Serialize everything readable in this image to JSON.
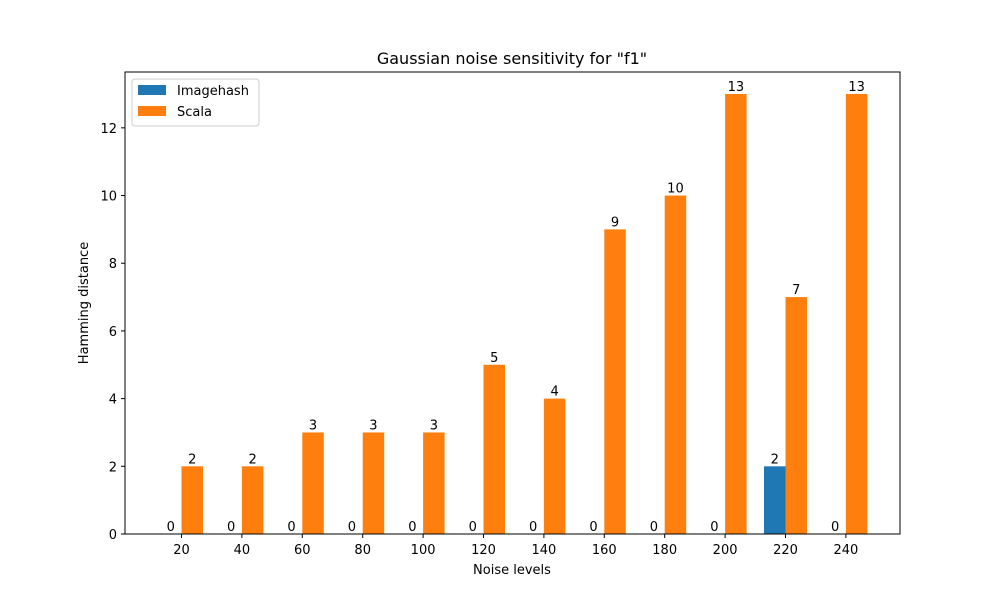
{
  "chart_data": {
    "type": "bar",
    "title": "Gaussian noise sensitivity for \"f1\"",
    "xlabel": "Noise levels",
    "ylabel": "Hamming distance",
    "categories": [
      "20",
      "40",
      "60",
      "80",
      "100",
      "120",
      "140",
      "160",
      "180",
      "200",
      "220",
      "240"
    ],
    "series": [
      {
        "name": "Imagehash",
        "color": "#1f77b4",
        "values": [
          0,
          0,
          0,
          0,
          0,
          0,
          0,
          0,
          0,
          0,
          2,
          0
        ]
      },
      {
        "name": "Scala",
        "color": "#ff7f0e",
        "values": [
          2,
          2,
          3,
          3,
          3,
          5,
          4,
          9,
          10,
          13,
          7,
          13
        ]
      }
    ],
    "ylim": [
      0,
      13.65
    ],
    "yticks": [
      0,
      2,
      4,
      6,
      8,
      10,
      12
    ],
    "grid": false,
    "legend_position": "top-left"
  }
}
